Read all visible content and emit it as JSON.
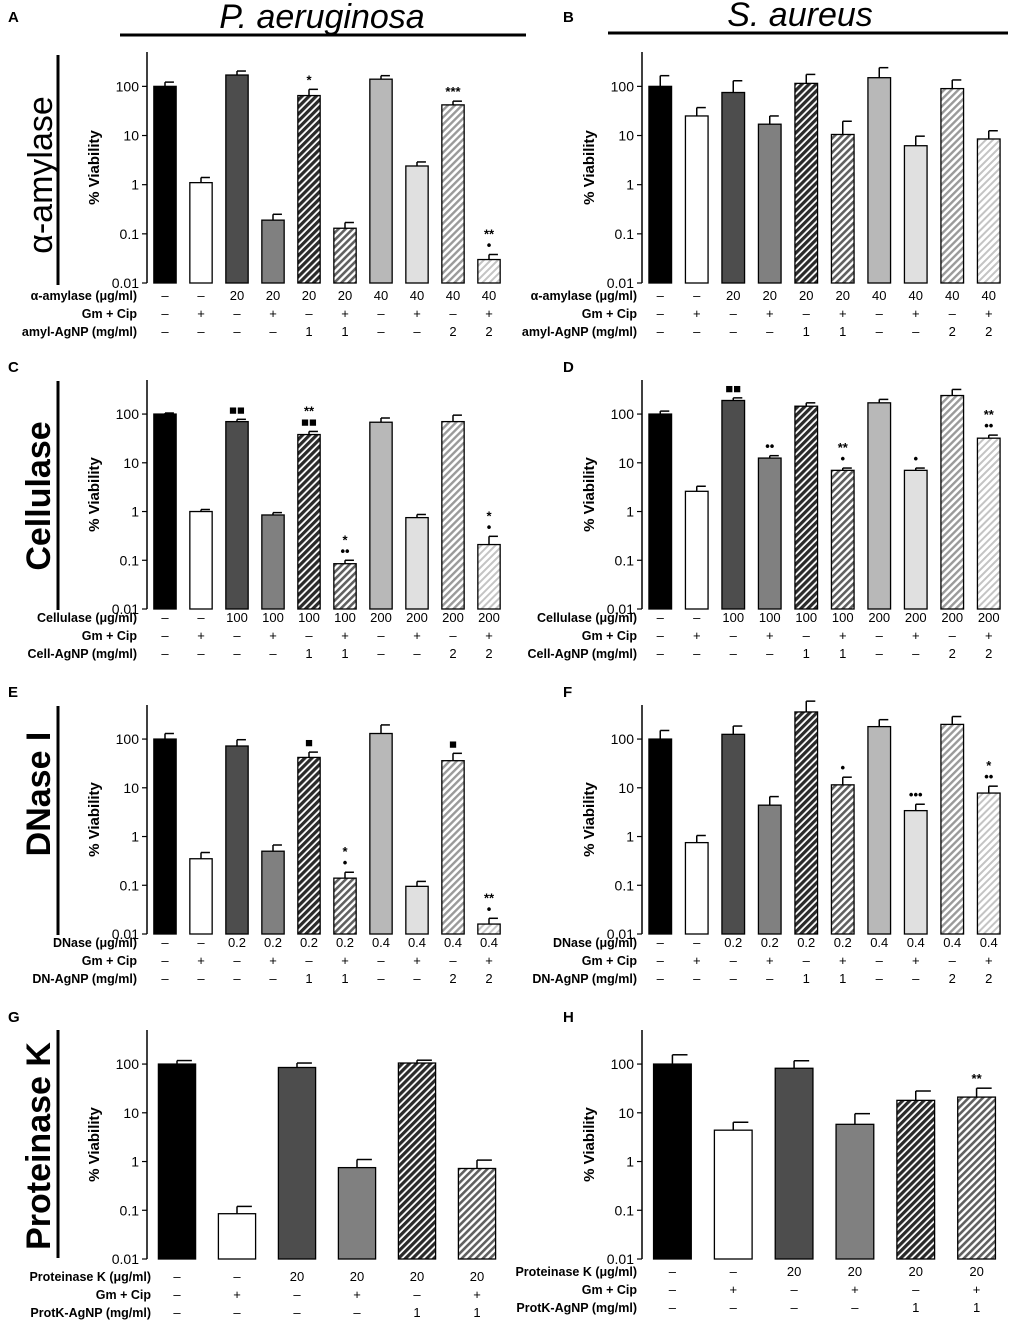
{
  "headers": {
    "left": "P. aeruginosa",
    "right": "S. aureus"
  },
  "colors": {
    "black": "#000000",
    "white": "#ffffff",
    "dark": "#4d4d4d",
    "mid": "#808080",
    "light": "#b8b8b8",
    "lighter": "#e0e0e0"
  },
  "y_axis_label": "% Viability",
  "y_ticks": [
    "100",
    "10",
    "1",
    "0.1",
    "0.01"
  ],
  "chart_data": [
    {
      "type": "bar",
      "panel": "A",
      "species": "P. aeruginosa",
      "yscale": "log",
      "ylim": [
        0.01,
        500
      ],
      "ylabel": "% Viability",
      "values": [
        100,
        1.1,
        170,
        0.19,
        65,
        0.13,
        140,
        2.4,
        42,
        0.03
      ],
      "errors": [
        22,
        0.3,
        35,
        0.06,
        22,
        0.04,
        25,
        0.5,
        8,
        0.008
      ],
      "annotations": [
        "",
        "",
        "",
        "",
        "*",
        "",
        "",
        "",
        "***",
        "**\n•"
      ],
      "styles": [
        "black",
        "white",
        "dark",
        "mid",
        "hatch-dark",
        "hatch-mid",
        "light",
        "lighter",
        "hatch-light",
        "hatch-lighter"
      ],
      "rows": [
        {
          "label": "α-amylase (μg/ml)",
          "values": [
            "–",
            "–",
            "20",
            "20",
            "20",
            "20",
            "40",
            "40",
            "40",
            "40"
          ]
        },
        {
          "label": "Gm + Cip",
          "values": [
            "–",
            "+",
            "–",
            "+",
            "–",
            "+",
            "–",
            "+",
            "–",
            "+"
          ]
        },
        {
          "label": "amyl-AgNP (mg/ml)",
          "values": [
            "–",
            "–",
            "–",
            "–",
            "1",
            "1",
            "–",
            "–",
            "2",
            "2"
          ]
        }
      ]
    },
    {
      "type": "bar",
      "panel": "B",
      "species": "S. aureus",
      "yscale": "log",
      "ylim": [
        0.01,
        500
      ],
      "ylabel": "% Viability",
      "values": [
        100,
        25,
        75,
        17,
        115,
        10.5,
        150,
        6.2,
        90,
        8.5
      ],
      "errors": [
        65,
        12,
        55,
        8,
        60,
        9,
        90,
        3.5,
        45,
        4
      ],
      "annotations": [
        "",
        "",
        "",
        "",
        "",
        "",
        "",
        "",
        "",
        ""
      ],
      "styles": [
        "black",
        "white",
        "dark",
        "mid",
        "hatch-dark",
        "hatch-mid",
        "light",
        "lighter",
        "hatch-light",
        "hatch-lighter"
      ],
      "rows": [
        {
          "label": "α-amylase (μg/ml)",
          "values": [
            "–",
            "–",
            "20",
            "20",
            "20",
            "20",
            "40",
            "40",
            "40",
            "40"
          ]
        },
        {
          "label": "Gm + Cip",
          "values": [
            "–",
            "+",
            "–",
            "+",
            "–",
            "+",
            "–",
            "+",
            "–",
            "+"
          ]
        },
        {
          "label": "amyl-AgNP (mg/ml)",
          "values": [
            "–",
            "–",
            "–",
            "–",
            "1",
            "1",
            "–",
            "–",
            "2",
            "2"
          ]
        }
      ]
    },
    {
      "type": "bar",
      "panel": "C",
      "species": "P. aeruginosa",
      "yscale": "log",
      "ylim": [
        0.01,
        500
      ],
      "ylabel": "% Viability",
      "values": [
        100,
        1.0,
        70,
        0.85,
        38,
        0.085,
        68,
        0.75,
        70,
        0.21
      ],
      "errors": [
        5,
        0.1,
        8,
        0.1,
        6,
        0.015,
        15,
        0.12,
        25,
        0.1
      ],
      "annotations": [
        "",
        "",
        "■■",
        "",
        "**\n■■",
        "*\n••",
        "",
        "",
        "",
        "*\n•"
      ],
      "styles": [
        "black",
        "white",
        "dark",
        "mid",
        "hatch-dark",
        "hatch-mid",
        "light",
        "lighter",
        "hatch-light",
        "hatch-lighter"
      ],
      "rows": [
        {
          "label": "Cellulase (μg/ml)",
          "values": [
            "–",
            "–",
            "100",
            "100",
            "100",
            "100",
            "200",
            "200",
            "200",
            "200"
          ]
        },
        {
          "label": "Gm + Cip",
          "values": [
            "–",
            "+",
            "–",
            "+",
            "–",
            "+",
            "–",
            "+",
            "–",
            "+"
          ]
        },
        {
          "label": "Cell-AgNP (mg/ml)",
          "values": [
            "–",
            "–",
            "–",
            "–",
            "1",
            "1",
            "–",
            "–",
            "2",
            "2"
          ]
        }
      ]
    },
    {
      "type": "bar",
      "panel": "D",
      "species": "S. aureus",
      "yscale": "log",
      "ylim": [
        0.01,
        500
      ],
      "ylabel": "% Viability",
      "values": [
        100,
        2.6,
        190,
        12.5,
        145,
        7.0,
        170,
        7.0,
        240,
        32
      ],
      "errors": [
        15,
        0.7,
        25,
        1.5,
        25,
        0.8,
        30,
        0.8,
        80,
        5
      ],
      "annotations": [
        "",
        "",
        "■■",
        "••",
        "",
        "**\n•",
        "",
        "•",
        "",
        "**\n••"
      ],
      "styles": [
        "black",
        "white",
        "dark",
        "mid",
        "hatch-dark",
        "hatch-mid",
        "light",
        "lighter",
        "hatch-light",
        "hatch-lighter"
      ],
      "rows": [
        {
          "label": "Cellulase (μg/ml)",
          "values": [
            "–",
            "–",
            "100",
            "100",
            "100",
            "100",
            "200",
            "200",
            "200",
            "200"
          ]
        },
        {
          "label": "Gm + Cip",
          "values": [
            "–",
            "+",
            "–",
            "+",
            "–",
            "+",
            "–",
            "+",
            "–",
            "+"
          ]
        },
        {
          "label": "Cell-AgNP (mg/ml)",
          "values": [
            "–",
            "–",
            "–",
            "–",
            "1",
            "1",
            "–",
            "–",
            "2",
            "2"
          ]
        }
      ]
    },
    {
      "type": "bar",
      "panel": "E",
      "species": "P. aeruginosa",
      "yscale": "log",
      "ylim": [
        0.01,
        500
      ],
      "ylabel": "% Viability",
      "values": [
        100,
        0.35,
        72,
        0.5,
        42,
        0.14,
        130,
        0.095,
        36,
        0.016
      ],
      "errors": [
        30,
        0.12,
        25,
        0.17,
        12,
        0.045,
        65,
        0.025,
        15,
        0.005
      ],
      "annotations": [
        "",
        "",
        "",
        "",
        "■",
        "*\n•",
        "",
        "",
        "■",
        "**\n•"
      ],
      "styles": [
        "black",
        "white",
        "dark",
        "mid",
        "hatch-dark",
        "hatch-mid",
        "light",
        "lighter",
        "hatch-light",
        "hatch-lighter"
      ],
      "rows": [
        {
          "label": "DNase (μg/ml)",
          "values": [
            "–",
            "–",
            "0.2",
            "0.2",
            "0.2",
            "0.2",
            "0.4",
            "0.4",
            "0.4",
            "0.4"
          ]
        },
        {
          "label": "Gm + Cip",
          "values": [
            "–",
            "+",
            "–",
            "+",
            "–",
            "+",
            "–",
            "+",
            "–",
            "+"
          ]
        },
        {
          "label": "DN-AgNP (mg/ml)",
          "values": [
            "–",
            "–",
            "–",
            "–",
            "1",
            "1",
            "–",
            "–",
            "2",
            "2"
          ]
        }
      ]
    },
    {
      "type": "bar",
      "panel": "F",
      "species": "S. aureus",
      "yscale": "log",
      "ylim": [
        0.01,
        500
      ],
      "ylabel": "% Viability",
      "values": [
        100,
        0.75,
        125,
        4.4,
        360,
        11.5,
        180,
        3.4,
        200,
        7.8
      ],
      "errors": [
        50,
        0.3,
        60,
        2.2,
        240,
        5,
        70,
        1.2,
        90,
        3
      ],
      "annotations": [
        "",
        "",
        "",
        "",
        "",
        "•",
        "",
        "•••",
        "",
        "*\n••"
      ],
      "styles": [
        "black",
        "white",
        "dark",
        "mid",
        "hatch-dark",
        "hatch-mid",
        "light",
        "lighter",
        "hatch-light",
        "hatch-lighter"
      ],
      "rows": [
        {
          "label": "DNase (μg/ml)",
          "values": [
            "–",
            "–",
            "0.2",
            "0.2",
            "0.2",
            "0.2",
            "0.4",
            "0.4",
            "0.4",
            "0.4"
          ]
        },
        {
          "label": "Gm + Cip",
          "values": [
            "–",
            "+",
            "–",
            "+",
            "–",
            "+",
            "–",
            "+",
            "–",
            "+"
          ]
        },
        {
          "label": "DN-AgNP (mg/ml)",
          "values": [
            "–",
            "–",
            "–",
            "–",
            "1",
            "1",
            "–",
            "–",
            "2",
            "2"
          ]
        }
      ]
    },
    {
      "type": "bar",
      "panel": "G",
      "species": "P. aeruginosa",
      "yscale": "log",
      "ylim": [
        0.01,
        500
      ],
      "ylabel": "% Viability",
      "values": [
        100,
        0.085,
        85,
        0.75,
        105,
        0.72
      ],
      "errors": [
        18,
        0.035,
        20,
        0.35,
        15,
        0.35
      ],
      "annotations": [
        "",
        "",
        "",
        "",
        "",
        ""
      ],
      "styles": [
        "black",
        "white",
        "dark",
        "mid",
        "hatch-dark",
        "hatch-mid"
      ],
      "rows": [
        {
          "label": "Proteinase K (μg/ml)",
          "values": [
            "–",
            "–",
            "20",
            "20",
            "20",
            "20"
          ]
        },
        {
          "label": "Gm + Cip",
          "values": [
            "–",
            "+",
            "–",
            "+",
            "–",
            "+"
          ]
        },
        {
          "label": "ProtK-AgNP (mg/ml)",
          "values": [
            "–",
            "–",
            "–",
            "–",
            "1",
            "1"
          ]
        }
      ]
    },
    {
      "type": "bar",
      "panel": "H",
      "species": "S. aureus",
      "yscale": "log",
      "ylim": [
        0.01,
        500
      ],
      "ylabel": "% Viability",
      "values": [
        100,
        4.4,
        82,
        5.8,
        18,
        21
      ],
      "errors": [
        55,
        2,
        35,
        3.8,
        10,
        11
      ],
      "annotations": [
        "",
        "",
        "",
        "",
        "",
        "**"
      ],
      "styles": [
        "black",
        "white",
        "dark",
        "mid",
        "hatch-dark",
        "hatch-mid"
      ],
      "rows": [
        {
          "label": "Proteinase K (μg/ml)",
          "values": [
            "–",
            "–",
            "20",
            "20",
            "20",
            "20"
          ]
        },
        {
          "label": "Gm + Cip",
          "values": [
            "–",
            "+",
            "–",
            "+",
            "–",
            "+"
          ]
        },
        {
          "label": "ProtK-AgNP (mg/ml)",
          "values": [
            "–",
            "–",
            "–",
            "–",
            "1",
            "1"
          ]
        }
      ]
    }
  ],
  "row_labels": [
    "α-amylase",
    "Cellulase",
    "DNase I",
    "Proteinase K"
  ]
}
